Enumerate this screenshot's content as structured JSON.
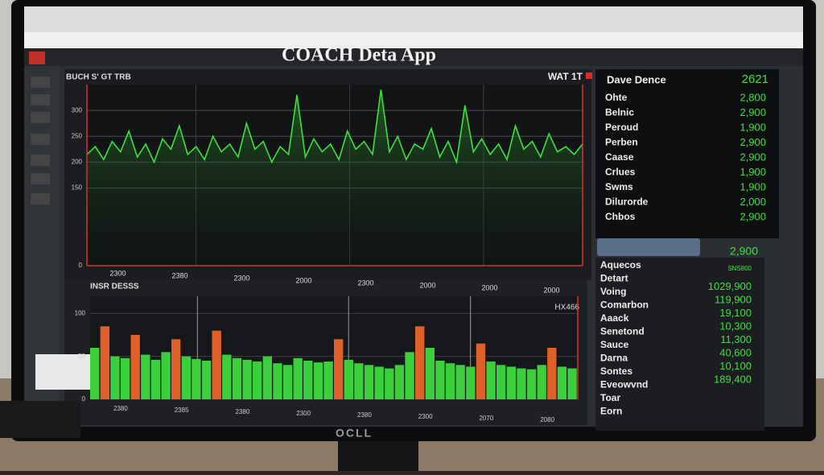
{
  "app": {
    "title": "COACH Deta App",
    "brand": "OCLL"
  },
  "main_chart": {
    "title": "BUCH S' GT TRB",
    "badge": "WAT 1T",
    "ylim": [
      0,
      350
    ],
    "yticks": [
      0,
      150,
      200,
      250,
      300
    ],
    "color": "#3fe03f",
    "categories": [
      "2300",
      "2380",
      "2300",
      "2000",
      "2300",
      "2000",
      "2000",
      "2000"
    ],
    "values": [
      215,
      230,
      205,
      240,
      220,
      260,
      210,
      235,
      200,
      245,
      225,
      270,
      215,
      230,
      205,
      250,
      220,
      235,
      210,
      275,
      225,
      240,
      200,
      230,
      215,
      330,
      210,
      245,
      220,
      235,
      205,
      260,
      225,
      240,
      215,
      340,
      220,
      250,
      205,
      235,
      225,
      265,
      210,
      240,
      200,
      310,
      220,
      245,
      215,
      235,
      205,
      270,
      225,
      240,
      210,
      255,
      220,
      230,
      215,
      235
    ]
  },
  "lower_chart": {
    "title": "INSR DESSS",
    "badge": "HX466",
    "ylim": [
      0,
      120
    ],
    "yticks": [
      0,
      50,
      100
    ],
    "categories": [
      "2380",
      "2385",
      "2380",
      "2300",
      "2380",
      "2300",
      "2070",
      "2080"
    ],
    "values": [
      60,
      85,
      50,
      48,
      75,
      52,
      46,
      55,
      70,
      50,
      47,
      45,
      80,
      52,
      48,
      46,
      44,
      50,
      42,
      40,
      48,
      45,
      43,
      44,
      70,
      46,
      42,
      40,
      38,
      36,
      40,
      55,
      85,
      60,
      45,
      42,
      40,
      38,
      65,
      44,
      40,
      38,
      36,
      35,
      40,
      60,
      38,
      36
    ],
    "colors": [
      "#3ccf3c",
      "#e0602a",
      "#3ccf3c",
      "#3ccf3c",
      "#e0602a",
      "#3ccf3c",
      "#3ccf3c",
      "#3ccf3c",
      "#e0602a",
      "#3ccf3c",
      "#3ccf3c",
      "#3ccf3c",
      "#e0602a",
      "#3ccf3c",
      "#3ccf3c",
      "#3ccf3c",
      "#3ccf3c",
      "#3ccf3c",
      "#3ccf3c",
      "#3ccf3c",
      "#3ccf3c",
      "#3ccf3c",
      "#3ccf3c",
      "#3ccf3c",
      "#e0602a",
      "#3ccf3c",
      "#3ccf3c",
      "#3ccf3c",
      "#3ccf3c",
      "#3ccf3c",
      "#3ccf3c",
      "#3ccf3c",
      "#e0602a",
      "#3ccf3c",
      "#3ccf3c",
      "#3ccf3c",
      "#3ccf3c",
      "#3ccf3c",
      "#e0602a",
      "#3ccf3c",
      "#3ccf3c",
      "#3ccf3c",
      "#3ccf3c",
      "#3ccf3c",
      "#3ccf3c",
      "#e0602a",
      "#3ccf3c",
      "#3ccf3c"
    ]
  },
  "stats_panel": {
    "header": "Dave Dence",
    "header_value": "2621",
    "rows": [
      [
        "Ohte",
        "2,800"
      ],
      [
        "Belnic",
        "2,900"
      ],
      [
        "Peroud",
        "1,900"
      ],
      [
        "Perben",
        "2,900"
      ],
      [
        "Caase",
        "2,900"
      ],
      [
        "Crlues",
        "1,900"
      ],
      [
        "Swms",
        "1,900"
      ],
      [
        "Dilurorde",
        "2,000"
      ],
      [
        "Chbos",
        "2,900"
      ]
    ]
  },
  "button": {
    "label": "2,900"
  },
  "list_panel": {
    "rows": [
      {
        "label": "Aquecos",
        "value": "SNS800"
      },
      {
        "label": "Detart",
        "value": "1029,900"
      },
      {
        "label": "Voing",
        "value": "119,900"
      },
      {
        "label": "Comarbon",
        "value": "19,100"
      },
      {
        "label": "Aaack",
        "value": "10,300"
      },
      {
        "label": "Senetond",
        "value": "11,300"
      },
      {
        "label": "Sauce",
        "value": "40,600"
      },
      {
        "label": "Darna",
        "value": "10,100"
      },
      {
        "label": "Sontes",
        "value": "189,400"
      },
      {
        "label": "Eveowvnd"
      },
      {
        "label": "Toar"
      },
      {
        "label": "Eorn"
      }
    ]
  }
}
